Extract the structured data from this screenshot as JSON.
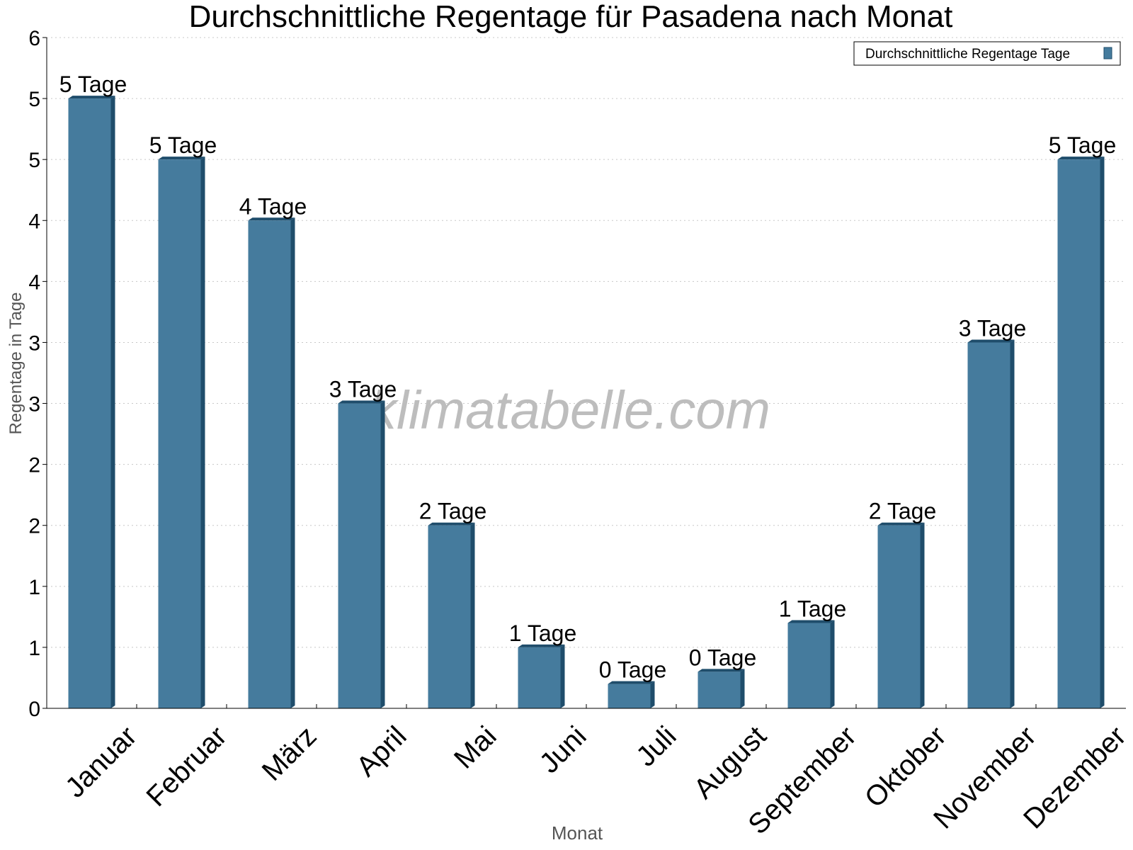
{
  "chart_data": {
    "type": "bar",
    "title": "Durchschnittliche Regentage für Pasadena nach Monat",
    "xlabel": "Monat",
    "ylabel": "Regentage in Tage",
    "ylim": [
      0,
      5.5
    ],
    "yticks": [
      0,
      0.5,
      1,
      1.5,
      2,
      2.5,
      3,
      3.5,
      4,
      4.5,
      5,
      5.5
    ],
    "ytick_labels": [
      "0",
      "1",
      "1",
      "2",
      "2",
      "3",
      "3",
      "4",
      "4",
      "5",
      "5",
      "6"
    ],
    "grid": true,
    "legend_position": "top-right",
    "categories": [
      "Januar",
      "Februar",
      "März",
      "April",
      "Mai",
      "Juni",
      "Juli",
      "August",
      "September",
      "Oktober",
      "November",
      "Dezember"
    ],
    "series": [
      {
        "name": "Durchschnittliche Regentage Tage",
        "color": "#457b9d",
        "values": [
          5.0,
          4.5,
          4.0,
          2.5,
          1.5,
          0.5,
          0.2,
          0.3,
          0.7,
          1.5,
          3.0,
          4.5
        ],
        "labels": [
          "5 Tage",
          "5 Tage",
          "4 Tage",
          "3 Tage",
          "2 Tage",
          "1 Tage",
          "0 Tage",
          "0 Tage",
          "1 Tage",
          "2 Tage",
          "3 Tage",
          "5 Tage"
        ]
      }
    ]
  },
  "watermark": "klimatabelle.com"
}
